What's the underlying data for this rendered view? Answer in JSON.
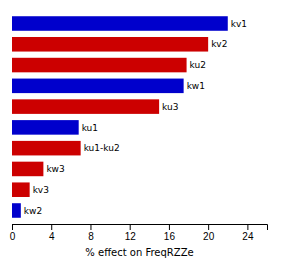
{
  "chart_data": {
    "type": "bar",
    "orientation": "horizontal",
    "categories": [
      "kw2",
      "kv3",
      "kw3",
      "ku1-ku2",
      "ku1",
      "ku3",
      "kw1",
      "ku2",
      "kv2",
      "kv1"
    ],
    "values": [
      0.9,
      1.8,
      3.2,
      7.0,
      6.8,
      15.0,
      17.5,
      17.8,
      20.0,
      22.0
    ],
    "colors": [
      "#0000cc",
      "#cc0000",
      "#cc0000",
      "#cc0000",
      "#0000cc",
      "#cc0000",
      "#0000cc",
      "#cc0000",
      "#cc0000",
      "#0000cc"
    ],
    "xlabel": "% effect on FreqRZZe",
    "xlim": [
      0,
      26
    ],
    "xticks": [
      0,
      4,
      8,
      12,
      16,
      20,
      24
    ],
    "tick_labels": "x",
    "grid": false
  }
}
